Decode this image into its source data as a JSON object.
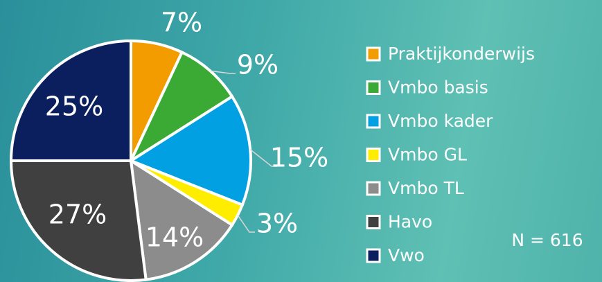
{
  "chart_data": {
    "type": "pie",
    "categories": [
      "Praktijkonderwijs",
      "Vmbo basis",
      "Vmbo kader",
      "Vmbo GL",
      "Vmbo TL",
      "Havo",
      "Vwo"
    ],
    "values": [
      7,
      9,
      15,
      3,
      14,
      27,
      25
    ],
    "value_labels": [
      "7%",
      "9%",
      "15%",
      "3%",
      "14%",
      "27%",
      "25%"
    ],
    "colors": [
      "#f39c00",
      "#3aaa35",
      "#00a0e3",
      "#ffed00",
      "#8c8c8c",
      "#404040",
      "#0b1f5e"
    ],
    "annotation": "N = 616",
    "legend": "right"
  }
}
